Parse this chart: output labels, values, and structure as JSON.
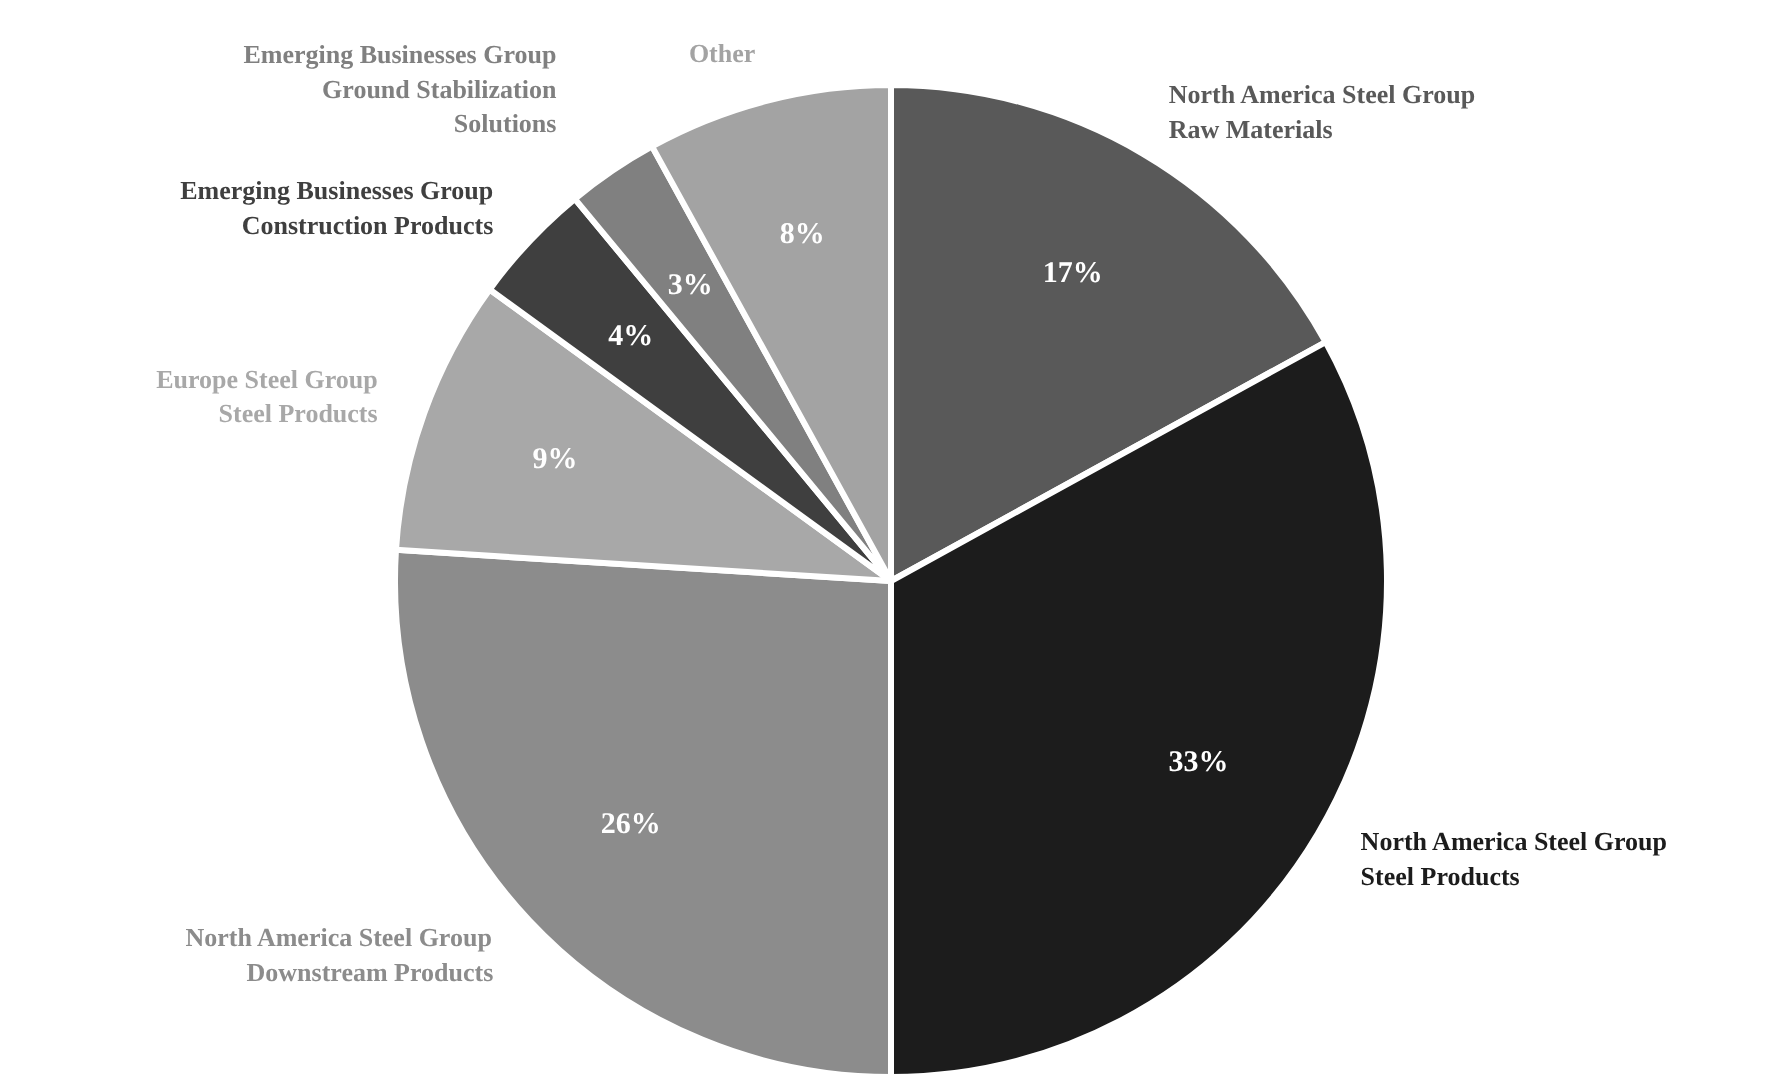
{
  "chart_data": {
    "type": "pie",
    "categories": [
      "North America Steel Group\nRaw Materials",
      "North America Steel Group\nSteel Products",
      "North America Steel Group\nDownstream Products",
      "Europe Steel Group\nSteel Products",
      "Emerging Businesses Group\nConstruction Products",
      "Emerging Businesses Group\nGround Stabilization\nSolutions",
      "Other"
    ],
    "values": [
      17,
      33,
      26,
      9,
      4,
      3,
      8
    ],
    "value_labels": [
      "17%",
      "33%",
      "26%",
      "9%",
      "4%",
      "3%",
      "8%"
    ],
    "colors": [
      "#595959",
      "#1c1c1c",
      "#8c8c8c",
      "#a8a8a8",
      "#3f3f3f",
      "#808080",
      "#a3a3a3"
    ]
  }
}
